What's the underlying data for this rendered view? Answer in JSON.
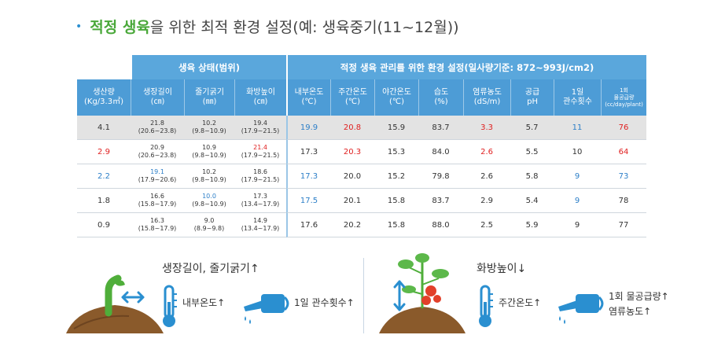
{
  "title": {
    "bullet": "•",
    "highlight": "적정 생육",
    "rest": "을 위한 최적 환경 설정(예: 생육중기(11~12월))"
  },
  "table": {
    "group_headers": {
      "growth": "생육 상태(범위)",
      "env": "적정 생육 관리를 위한 환경 설정(일사량기준: 872~993J/cm2)"
    },
    "columns": [
      {
        "line1": "생산량",
        "line2": "(Kg/3.3㎡)"
      },
      {
        "line1": "생장길이",
        "line2": "(㎝)"
      },
      {
        "line1": "줄기굵기",
        "line2": "(㎜)"
      },
      {
        "line1": "화방높이",
        "line2": "(㎝)"
      },
      {
        "line1": "내부온도",
        "line2": "(℃)"
      },
      {
        "line1": "주간온도",
        "line2": "(℃)"
      },
      {
        "line1": "야간온도",
        "line2": "(℃)"
      },
      {
        "line1": "습도",
        "line2": "(%)"
      },
      {
        "line1": "염류농도",
        "line2": "(dS/m)"
      },
      {
        "line1": "공급",
        "line2": "pH"
      },
      {
        "line1": "1일",
        "line2": "관수횟수"
      },
      {
        "line1": "1회",
        "line2": "물공급량",
        "line3": "(cc/day/plant)"
      }
    ],
    "rows": [
      {
        "production": "4.1",
        "growth_length": {
          "value": "21.8",
          "range": "(20.6~23.8)"
        },
        "stem_thickness": {
          "value": "10.2",
          "range": "(9.8~10.9)"
        },
        "flower_height": {
          "value": "19.4",
          "range": "(17.9~21.5)"
        },
        "inner_temp": "19.9",
        "day_temp": "20.8",
        "night_temp": "15.9",
        "humidity": "83.7",
        "ec": "3.3",
        "ph": "5.7",
        "irrigation": "11",
        "water": "76"
      },
      {
        "production": "2.9",
        "growth_length": {
          "value": "20.9",
          "range": "(20.6~23.8)"
        },
        "stem_thickness": {
          "value": "10.9",
          "range": "(9.8~10.9)"
        },
        "flower_height": {
          "value": "21.4",
          "range": "(17.9~21.5)"
        },
        "inner_temp": "17.3",
        "day_temp": "20.3",
        "night_temp": "15.3",
        "humidity": "84.0",
        "ec": "2.6",
        "ph": "5.5",
        "irrigation": "10",
        "water": "64"
      },
      {
        "production": "2.2",
        "growth_length": {
          "value": "19.1",
          "range": "(17.9~20.6)"
        },
        "stem_thickness": {
          "value": "10.2",
          "range": "(9.8~10.9)"
        },
        "flower_height": {
          "value": "18.6",
          "range": "(17.9~21.5)"
        },
        "inner_temp": "17.3",
        "day_temp": "20.0",
        "night_temp": "15.2",
        "humidity": "79.8",
        "ec": "2.6",
        "ph": "5.8",
        "irrigation": "9",
        "water": "73"
      },
      {
        "production": "1.8",
        "growth_length": {
          "value": "16.6",
          "range": "(15.8~17.9)"
        },
        "stem_thickness": {
          "value": "10.0",
          "range": "(9.8~10.9)"
        },
        "flower_height": {
          "value": "17.3",
          "range": "(13.4~17.9)"
        },
        "inner_temp": "17.5",
        "day_temp": "20.1",
        "night_temp": "15.8",
        "humidity": "83.7",
        "ec": "2.9",
        "ph": "5.4",
        "irrigation": "9",
        "water": "78"
      },
      {
        "production": "0.9",
        "growth_length": {
          "value": "16.3",
          "range": "(15.8~17.9)"
        },
        "stem_thickness": {
          "value": "9.0",
          "range": "(8.9~9.8)"
        },
        "flower_height": {
          "value": "14.9",
          "range": "(13.4~17.9)"
        },
        "inner_temp": "17.6",
        "day_temp": "20.2",
        "night_temp": "15.8",
        "humidity": "88.0",
        "ec": "2.5",
        "ph": "5.9",
        "irrigation": "9",
        "water": "77"
      }
    ]
  },
  "left_panel": {
    "heading": "생장길이, 줄기굵기↑",
    "inner_temp_note": "내부온도↑",
    "irrigation_note": "1일 관수횟수↑"
  },
  "right_panel": {
    "heading": "화방높이↓",
    "day_temp_note": "주간온도↑",
    "water_note": "1회 물공급량↑",
    "ec_note": "염류농도↑"
  },
  "colors": {
    "header_blue": "#4d9cd6",
    "group_blue": "#5aa7dc",
    "highlight_green": "#4aa83a",
    "value_red": "#e02020",
    "value_blue": "#2d7fc8",
    "icon_blue": "#2a8fd0",
    "soil_brown": "#8a5a2b"
  },
  "icons": [
    "stem-icon",
    "double-arrow-icon",
    "thermometer-icon",
    "watering-can-icon",
    "tomato-plant-icon"
  ]
}
